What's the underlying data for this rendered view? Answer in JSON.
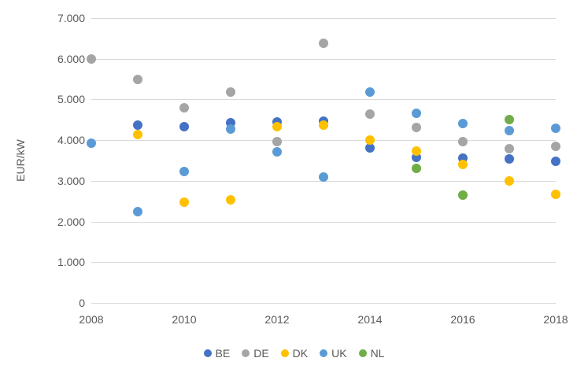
{
  "chart": {
    "y_axis_title": "EUR/kW",
    "y_tick_labels": [
      "7.000",
      "6.000",
      "5.000",
      "4.000",
      "3.000",
      "2.000",
      "1.000",
      "0"
    ],
    "x_tick_labels": [
      "2008",
      "2010",
      "2012",
      "2014",
      "2016",
      "2018"
    ],
    "x_tick_years": [
      2008,
      2010,
      2012,
      2014,
      2016,
      2018
    ],
    "colors": {
      "gridline": "#d9d9d9",
      "text": "#595959",
      "background": "#ffffff"
    }
  },
  "chart_data": {
    "type": "scatter",
    "title": "",
    "xlabel": "",
    "ylabel": "EUR/kW",
    "xlim": [
      2008,
      2018
    ],
    "ylim": [
      0,
      7000
    ],
    "y_tick_step": 1000,
    "grid": true,
    "legend_position": "bottom",
    "series": [
      {
        "name": "BE",
        "color": "#4472C4",
        "points": [
          [
            2009,
            4370
          ],
          [
            2010,
            4340
          ],
          [
            2011,
            4430
          ],
          [
            2012,
            4440
          ],
          [
            2013,
            4470
          ],
          [
            2014,
            3800
          ],
          [
            2015,
            3580
          ],
          [
            2016,
            3560
          ],
          [
            2017,
            3530
          ],
          [
            2018,
            3490
          ]
        ]
      },
      {
        "name": "DE",
        "color": "#A5A5A5",
        "points": [
          [
            2008,
            6000
          ],
          [
            2009,
            5500
          ],
          [
            2010,
            4800
          ],
          [
            2011,
            5180
          ],
          [
            2012,
            3970
          ],
          [
            2013,
            6390
          ],
          [
            2014,
            4650
          ],
          [
            2015,
            4310
          ],
          [
            2016,
            3960
          ],
          [
            2017,
            3790
          ],
          [
            2018,
            3850
          ]
        ]
      },
      {
        "name": "DK",
        "color": "#FFC000",
        "points": [
          [
            2009,
            4140
          ],
          [
            2010,
            2480
          ],
          [
            2011,
            2540
          ],
          [
            2012,
            4340
          ],
          [
            2013,
            4370
          ],
          [
            2014,
            4010
          ],
          [
            2015,
            3740
          ],
          [
            2016,
            3410
          ],
          [
            2017,
            3000
          ],
          [
            2018,
            2660
          ]
        ]
      },
      {
        "name": "UK",
        "color": "#5B9BD5",
        "points": [
          [
            2008,
            3930
          ],
          [
            2009,
            2250
          ],
          [
            2010,
            3220
          ],
          [
            2011,
            4270
          ],
          [
            2012,
            3720
          ],
          [
            2013,
            3100
          ],
          [
            2014,
            5190
          ],
          [
            2015,
            4660
          ],
          [
            2016,
            4400
          ],
          [
            2017,
            4240
          ],
          [
            2018,
            4290
          ]
        ]
      },
      {
        "name": "NL",
        "color": "#70AD47",
        "points": [
          [
            2015,
            3300
          ],
          [
            2016,
            2650
          ],
          [
            2017,
            4500
          ]
        ]
      }
    ]
  }
}
